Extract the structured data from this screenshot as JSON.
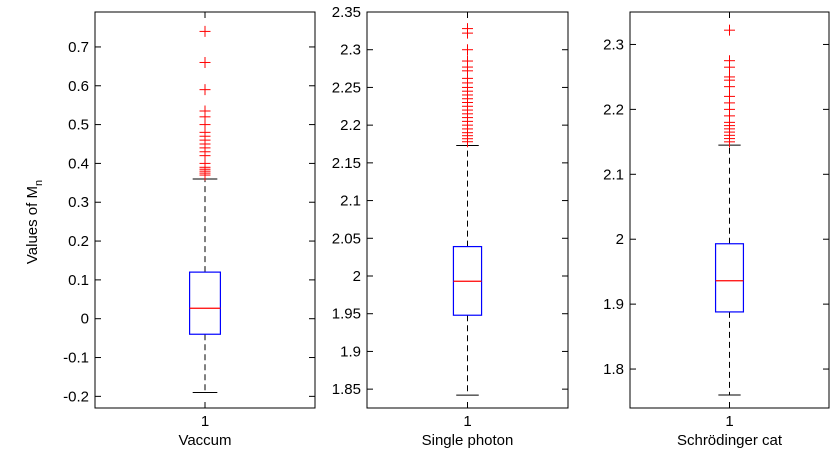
{
  "ylabel_main": "Values of M",
  "ylabel_sub": "n",
  "colors": {
    "box": "#0000ff",
    "median": "#ff0000",
    "outlier": "#ff0000",
    "whisker": "#000000",
    "axis": "#000000"
  },
  "chart_data": [
    {
      "type": "box",
      "category": "1",
      "xlabel": "Vaccum",
      "ylim": [
        -0.23,
        0.79
      ],
      "yticks": [
        -0.2,
        -0.1,
        0,
        0.1,
        0.2,
        0.3,
        0.4,
        0.5,
        0.6,
        0.7
      ],
      "ytick_labels": [
        "-0.2",
        "-0.1",
        "0",
        "0.1",
        "0.2",
        "0.3",
        "0.4",
        "0.5",
        "0.6",
        "0.7"
      ],
      "whisker_low": -0.19,
      "q1": -0.04,
      "median": 0.027,
      "q3": 0.12,
      "whisker_high": 0.36,
      "outliers": [
        0.74,
        0.66,
        0.59,
        0.535,
        0.52,
        0.5,
        0.48,
        0.47,
        0.46,
        0.45,
        0.44,
        0.43,
        0.42,
        0.4,
        0.39,
        0.385,
        0.38,
        0.375,
        0.37
      ]
    },
    {
      "type": "box",
      "category": "1",
      "xlabel": "Single photon",
      "ylim": [
        1.825,
        2.35
      ],
      "yticks": [
        1.85,
        1.9,
        1.95,
        2.0,
        2.05,
        2.1,
        2.15,
        2.2,
        2.25,
        2.3,
        2.35
      ],
      "ytick_labels": [
        "1.85",
        "1.9",
        "1.95",
        "2",
        "2.05",
        "2.1",
        "2.15",
        "2.2",
        "2.25",
        "2.3",
        "2.35"
      ],
      "whisker_low": 1.842,
      "q1": 1.948,
      "median": 1.993,
      "q3": 2.039,
      "whisker_high": 2.173,
      "outliers": [
        2.328,
        2.322,
        2.3,
        2.285,
        2.277,
        2.272,
        2.262,
        2.256,
        2.25,
        2.245,
        2.24,
        2.235,
        2.23,
        2.225,
        2.22,
        2.215,
        2.21,
        2.205,
        2.2,
        2.195,
        2.19,
        2.186,
        2.182,
        2.178
      ]
    },
    {
      "type": "box",
      "category": "1",
      "xlabel": "Schrödinger cat",
      "ylim": [
        1.74,
        2.35
      ],
      "yticks": [
        1.8,
        1.9,
        2.0,
        2.1,
        2.2,
        2.3
      ],
      "ytick_labels": [
        "1.8",
        "1.9",
        "2",
        "2.1",
        "2.2",
        "2.3"
      ],
      "whisker_low": 1.76,
      "q1": 1.888,
      "median": 1.936,
      "q3": 1.993,
      "whisker_high": 2.145,
      "outliers": [
        2.322,
        2.275,
        2.265,
        2.25,
        2.245,
        2.235,
        2.22,
        2.21,
        2.2,
        2.19,
        2.18,
        2.175,
        2.17,
        2.165,
        2.16,
        2.155,
        2.15
      ]
    }
  ]
}
